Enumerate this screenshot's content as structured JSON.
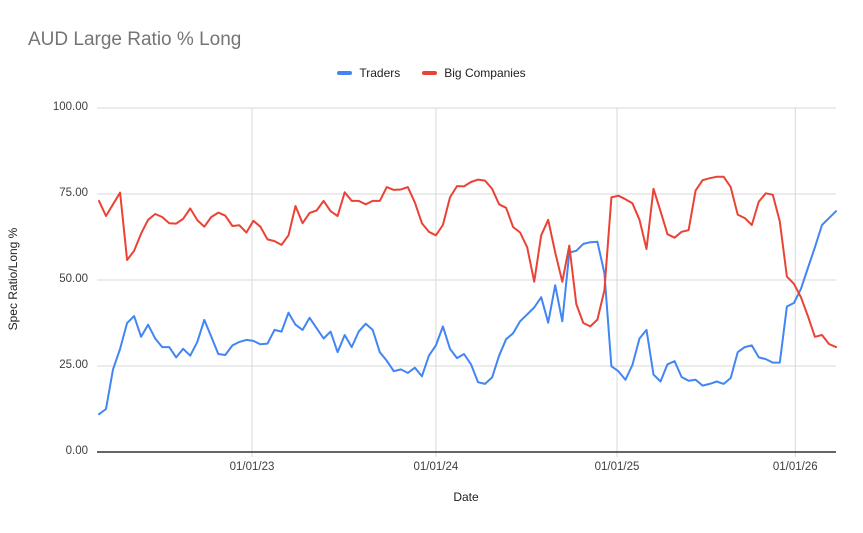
{
  "title": "AUD Large Ratio % Long",
  "legend": [
    {
      "label": "Traders",
      "color": "#4285F4"
    },
    {
      "label": "Big Companies",
      "color": "#EA4335"
    }
  ],
  "axes": {
    "x_title": "Date",
    "y_title": "Spec Ratio/Long %"
  },
  "colors": {
    "title_text": "#757575",
    "tick_text": "#3c4043",
    "gridline": "#d9d9d9",
    "axis_baseline": "#333333",
    "background": "#ffffff",
    "traders_line": "#4285F4",
    "big_companies_line": "#EA4335"
  },
  "chart_data": {
    "type": "line",
    "title": "AUD Large Ratio % Long",
    "xlabel": "Date",
    "ylabel": "Spec Ratio/Long %",
    "ylim": [
      0,
      100
    ],
    "grid": true,
    "legend_position": "top-center",
    "y_ticks": [
      {
        "value": 0,
        "label": "0.00"
      },
      {
        "value": 25,
        "label": "25.00"
      },
      {
        "value": 50,
        "label": "50.00"
      },
      {
        "value": 75,
        "label": "75.00"
      },
      {
        "value": 100,
        "label": "100.00"
      }
    ],
    "x_range_note": "weekly data approx Mar 2022 to Apr 2026, sampled biweekly (106 points)",
    "x_ticks": [
      {
        "label": "01/01/23",
        "index": 21.8
      },
      {
        "label": "01/01/24",
        "index": 48.0
      },
      {
        "label": "01/01/25",
        "index": 73.8
      },
      {
        "label": "01/01/26",
        "index": 99.2
      }
    ],
    "series": [
      {
        "name": "Traders",
        "color": "#4285F4",
        "values": [
          11,
          12.5,
          24,
          30,
          37.5,
          39.5,
          33.5,
          37,
          33,
          30.5,
          30.5,
          27.5,
          30,
          28,
          32,
          38.4,
          33.5,
          28.5,
          28.2,
          31,
          32,
          32.6,
          32.3,
          31.3,
          31.5,
          35.5,
          35,
          40.5,
          37,
          35.5,
          39,
          36,
          33,
          35,
          29,
          34,
          30.5,
          35,
          37.3,
          35.5,
          29,
          26.5,
          23.5,
          24,
          23,
          24.5,
          22,
          28,
          31,
          36.5,
          30,
          27.3,
          28.5,
          25.5,
          20.3,
          19.8,
          21.7,
          28,
          32.8,
          34.5,
          38,
          40,
          42,
          45,
          37.6,
          48.5,
          38,
          58,
          58.5,
          60.5,
          61,
          61.1,
          52,
          24.9,
          23.5,
          21,
          25.3,
          33,
          35.5,
          22.5,
          20.5,
          25.5,
          26.4,
          21.8,
          20.7,
          21,
          19.3,
          19.8,
          20.5,
          19.8,
          21.5,
          29,
          30.5,
          31,
          27.5,
          27,
          26,
          26,
          42.3,
          43.3,
          47.4,
          53.5,
          59.5,
          66,
          68,
          70
        ]
      },
      {
        "name": "Big Companies",
        "color": "#EA4335",
        "values": [
          73,
          68.6,
          72,
          75.4,
          55.8,
          58.5,
          63.5,
          67.5,
          69.2,
          68.3,
          66.5,
          66.4,
          67.8,
          70.8,
          67.4,
          65.5,
          68.3,
          69.6,
          68.7,
          65.7,
          65.9,
          63.8,
          67.2,
          65.5,
          61.8,
          61.3,
          60.2,
          63,
          71.5,
          66.5,
          69.5,
          70.2,
          73,
          70,
          68.6,
          75.5,
          73,
          73,
          72,
          73,
          73,
          77,
          76.2,
          76.3,
          77,
          72.5,
          66.5,
          64,
          63,
          66,
          74,
          77.3,
          77.2,
          78.5,
          79.2,
          78.9,
          76.5,
          72,
          71,
          65.4,
          63.8,
          59.5,
          49.5,
          63,
          67.5,
          58,
          49.5,
          60,
          43,
          37.5,
          36.5,
          38.5,
          47,
          74,
          74.5,
          73.5,
          72.3,
          67.5,
          59,
          76.5,
          70,
          63.3,
          62.3,
          64,
          64.5,
          76,
          79,
          79.6,
          80,
          80,
          77,
          69,
          68,
          66,
          72.8,
          75.2,
          74.8,
          67,
          51,
          48.9,
          45,
          39.5,
          33.5,
          34,
          31.4,
          30.5
        ]
      }
    ]
  }
}
